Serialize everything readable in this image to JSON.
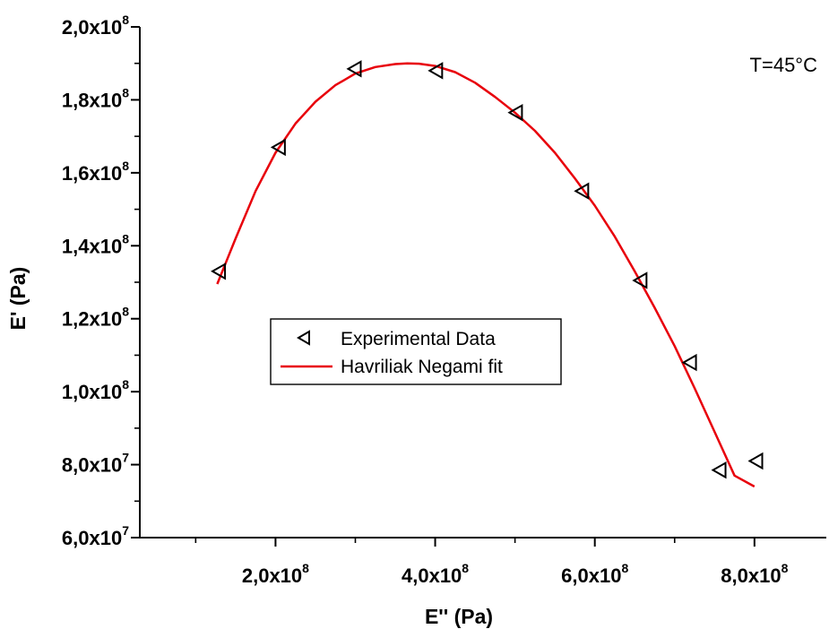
{
  "chart_data": {
    "type": "scatter",
    "xlabel": "E'' (Pa)",
    "ylabel": "E' (Pa)",
    "xlim": [
      30000000,
      890000000
    ],
    "ylim": [
      60000000,
      200000000
    ],
    "x_ticks": [
      {
        "value": 200000000,
        "mantissa": "2,0x10",
        "exp": "8"
      },
      {
        "value": 400000000,
        "mantissa": "4,0x10",
        "exp": "8"
      },
      {
        "value": 600000000,
        "mantissa": "6,0x10",
        "exp": "8"
      },
      {
        "value": 800000000,
        "mantissa": "8,0x10",
        "exp": "8"
      }
    ],
    "y_ticks": [
      {
        "value": 60000000,
        "mantissa": "6,0x10",
        "exp": "7"
      },
      {
        "value": 80000000,
        "mantissa": "8,0x10",
        "exp": "7"
      },
      {
        "value": 100000000,
        "mantissa": "1,0x10",
        "exp": "8"
      },
      {
        "value": 120000000,
        "mantissa": "1,2x10",
        "exp": "8"
      },
      {
        "value": 140000000,
        "mantissa": "1,4x10",
        "exp": "8"
      },
      {
        "value": 160000000,
        "mantissa": "1,6x10",
        "exp": "8"
      },
      {
        "value": 180000000,
        "mantissa": "1,8x10",
        "exp": "8"
      },
      {
        "value": 200000000,
        "mantissa": "2,0x10",
        "exp": "8"
      }
    ],
    "annotation": "T=45°C",
    "legend_position": "center-left",
    "series": [
      {
        "name": "Experimental Data",
        "kind": "scatter",
        "marker": "left-triangle",
        "color": "#000000",
        "points": [
          [
            130000000,
            133000000
          ],
          [
            205000000,
            167000000
          ],
          [
            300000000,
            188500000
          ],
          [
            402000000,
            188000000
          ],
          [
            502000000,
            176500000
          ],
          [
            585000000,
            155000000
          ],
          [
            658000000,
            130500000
          ],
          [
            720000000,
            108000000
          ],
          [
            757000000,
            78500000
          ],
          [
            803000000,
            81000000
          ]
        ]
      },
      {
        "name": "Havriliak Negami fit",
        "kind": "line",
        "color": "#e8000b",
        "points": [
          [
            127000000,
            129500000
          ],
          [
            150000000,
            142000000
          ],
          [
            175000000,
            155000000
          ],
          [
            200000000,
            165500000
          ],
          [
            225000000,
            173500000
          ],
          [
            250000000,
            179500000
          ],
          [
            275000000,
            184000000
          ],
          [
            300000000,
            187200000
          ],
          [
            325000000,
            189000000
          ],
          [
            350000000,
            189800000
          ],
          [
            365000000,
            190000000
          ],
          [
            380000000,
            189900000
          ],
          [
            400000000,
            189300000
          ],
          [
            425000000,
            187600000
          ],
          [
            450000000,
            184700000
          ],
          [
            475000000,
            180800000
          ],
          [
            500000000,
            176500000
          ],
          [
            525000000,
            171500000
          ],
          [
            550000000,
            165500000
          ],
          [
            575000000,
            158500000
          ],
          [
            600000000,
            151000000
          ],
          [
            625000000,
            142500000
          ],
          [
            650000000,
            133000000
          ],
          [
            675000000,
            123000000
          ],
          [
            700000000,
            112500000
          ],
          [
            725000000,
            101000000
          ],
          [
            750000000,
            89000000
          ],
          [
            775000000,
            77000000
          ],
          [
            800000000,
            74000000
          ]
        ]
      }
    ]
  }
}
